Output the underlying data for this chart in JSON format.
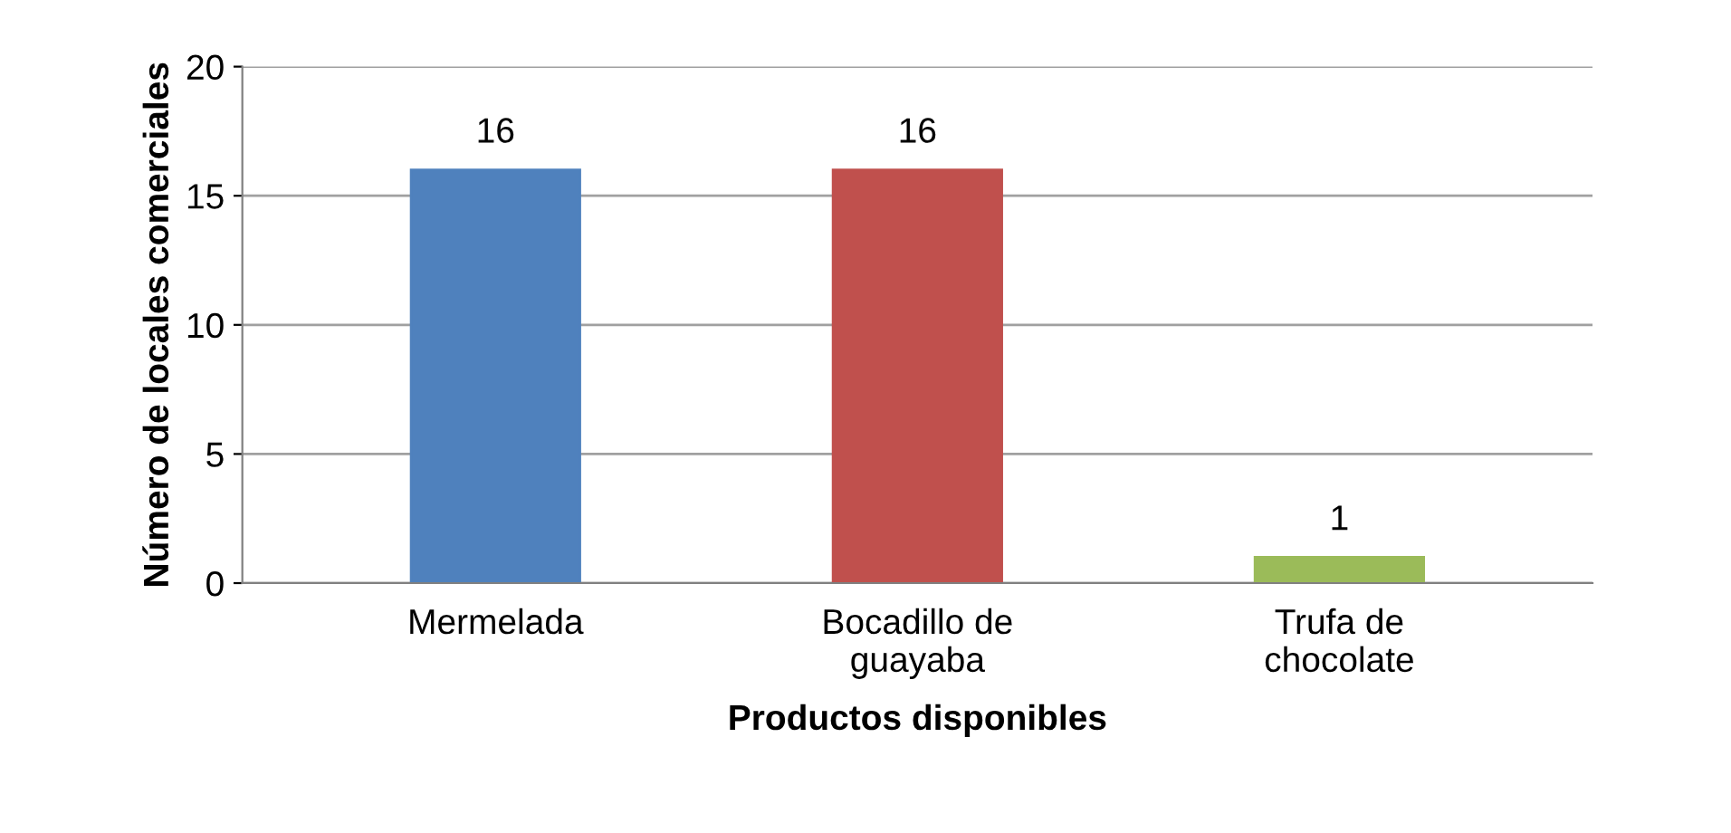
{
  "chart_data": {
    "type": "bar",
    "categories": [
      "Mermelada",
      "Bocadillo de\nguayaba",
      "Trufa de\nchocolate"
    ],
    "values": [
      16,
      16,
      1
    ],
    "colors": [
      "#4f81bd",
      "#c0504d",
      "#9bbb59"
    ],
    "xlabel": "Productos disponibles",
    "ylabel": "Número de locales comerciales",
    "ylim": [
      0,
      20
    ],
    "yticks": [
      0,
      5,
      10,
      15,
      20
    ],
    "grid": "y",
    "data_labels": true,
    "legend": false
  }
}
